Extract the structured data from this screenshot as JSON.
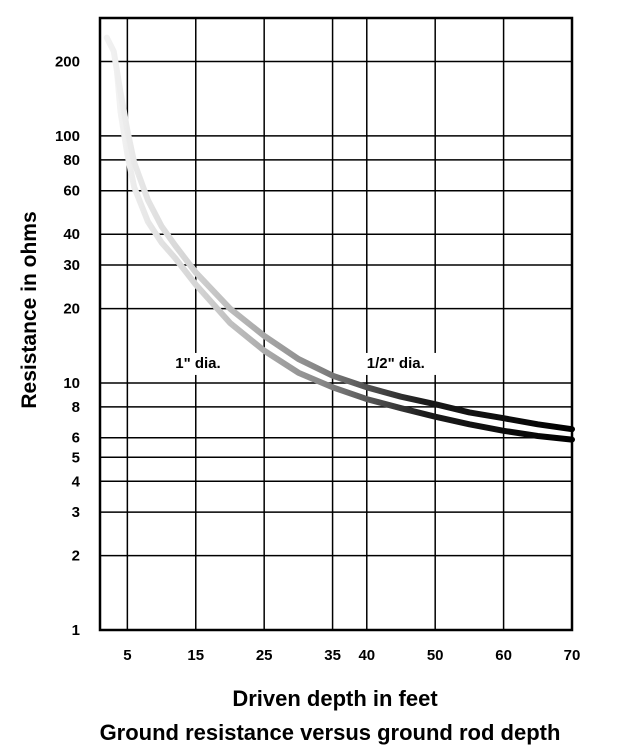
{
  "chart_data": {
    "type": "line",
    "title": "Ground resistance versus ground rod depth",
    "xlabel": "Driven depth in feet",
    "ylabel": "Resistance in ohms",
    "y_scale": "log",
    "grid": true,
    "x_ticks": [
      5,
      15,
      25,
      35,
      40,
      50,
      60,
      70
    ],
    "y_ticks": [
      1,
      2,
      3,
      4,
      5,
      6,
      8,
      10,
      20,
      30,
      40,
      60,
      80,
      100,
      200
    ],
    "y_tick_labels": [
      "1",
      "2",
      "3",
      "4",
      "5",
      "6",
      "8",
      "10",
      "20",
      "30",
      "40",
      "60",
      "80",
      "100",
      "200"
    ],
    "xlim": [
      1,
      70
    ],
    "ylim": [
      1,
      300
    ],
    "series": [
      {
        "name": "1\" dia.",
        "x": [
          3.5,
          4,
          5,
          6,
          8,
          10,
          12,
          15,
          20,
          25,
          30,
          35,
          40,
          45,
          50,
          55,
          60,
          65,
          70
        ],
        "y": [
          180,
          125,
          84,
          62,
          45,
          37,
          32,
          25,
          17.5,
          13.5,
          11,
          9.6,
          8.6,
          7.9,
          7.3,
          6.8,
          6.4,
          6.1,
          5.9
        ]
      },
      {
        "name": "1/2\" dia.",
        "x": [
          2,
          3,
          4,
          5,
          6,
          8,
          10,
          12,
          15,
          20,
          25,
          30,
          35,
          40,
          45,
          50,
          55,
          60,
          65,
          70
        ],
        "y": [
          250,
          220,
          150,
          105,
          78,
          55,
          43,
          36,
          28,
          20,
          15.5,
          12.5,
          10.7,
          9.6,
          8.8,
          8.2,
          7.6,
          7.2,
          6.8,
          6.5
        ]
      }
    ],
    "annotations": [
      {
        "text": "1\" dia.",
        "x": 12,
        "y": 11.5
      },
      {
        "text": "1/2\" dia.",
        "x": 40,
        "y": 11.5
      }
    ]
  }
}
